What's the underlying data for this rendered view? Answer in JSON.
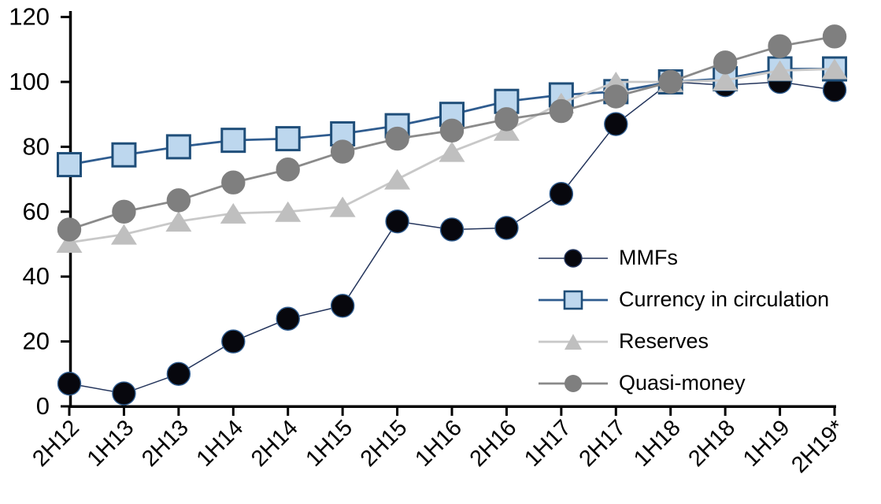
{
  "chart_data": {
    "type": "line",
    "title": "",
    "xlabel": "",
    "ylabel": "",
    "ylim": [
      0,
      120
    ],
    "y_ticks": [
      0,
      20,
      40,
      60,
      80,
      100,
      120
    ],
    "grid": false,
    "legend_position": "inside-right",
    "categories": [
      "2H12",
      "1H13",
      "2H13",
      "1H14",
      "2H14",
      "1H15",
      "2H15",
      "1H16",
      "2H16",
      "1H17",
      "2H17",
      "1H18",
      "2H18",
      "1H19",
      "2H19*"
    ],
    "series": [
      {
        "name": "MMFs",
        "marker": "circle",
        "line_color": "#24355c",
        "marker_fill": "#07070d",
        "marker_stroke": "#2f5c8f",
        "values": [
          7,
          4,
          10,
          20,
          27,
          31,
          57,
          54.5,
          55,
          65.5,
          87,
          100,
          99,
          100,
          97.5
        ]
      },
      {
        "name": "Currency in circulation",
        "marker": "square",
        "line_color": "#2f5c8f",
        "marker_fill": "#bdd7ee",
        "marker_stroke": "#1f4e79",
        "values": [
          74.5,
          77.5,
          80,
          82,
          82.5,
          84,
          86.5,
          90,
          94,
          96,
          97,
          100,
          101,
          104,
          104
        ]
      },
      {
        "name": "Reserves",
        "marker": "triangle",
        "line_color": "#c8c8c8",
        "marker_fill": "#bfbfbf",
        "marker_stroke": "#bfbfbf",
        "values": [
          50.5,
          53,
          57,
          59.5,
          60,
          61.5,
          70,
          78.5,
          85,
          93.5,
          100,
          100,
          100.5,
          103.5,
          104
        ]
      },
      {
        "name": "Quasi-money",
        "marker": "circle",
        "line_color": "#8a8a8a",
        "marker_fill": "#7f7f7f",
        "marker_stroke": "#7f7f7f",
        "values": [
          54.5,
          60,
          63.5,
          69,
          73,
          78.5,
          82.5,
          85,
          88.5,
          91,
          95.5,
          100,
          106,
          111,
          114
        ]
      }
    ]
  }
}
